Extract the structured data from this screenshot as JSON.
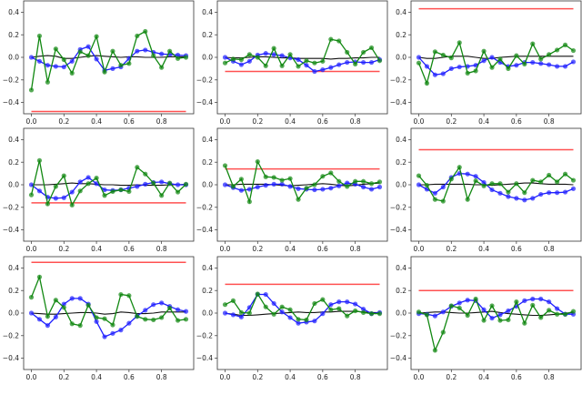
{
  "chart_data": {
    "type": "line",
    "layout": "3x3 grid of subplots",
    "x": [
      0,
      0.05,
      0.1,
      0.15,
      0.2,
      0.25,
      0.3,
      0.35,
      0.4,
      0.45,
      0.5,
      0.55,
      0.6,
      0.65,
      0.7,
      0.75,
      0.8,
      0.85,
      0.9,
      0.95
    ],
    "xlim": [
      -0.0475,
      0.9975
    ],
    "ylim": [
      -0.5,
      0.5
    ],
    "xticks": [
      "0.0",
      "0.2",
      "0.4",
      "0.6",
      "0.8"
    ],
    "xtick_values": [
      0,
      0.2,
      0.4,
      0.6,
      0.8
    ],
    "yticks": [
      "−0.4",
      "−0.2",
      "0.0",
      "0.2",
      "0.4"
    ],
    "ytick_values": [
      -0.4,
      -0.2,
      0,
      0.2,
      0.4
    ],
    "grid": false,
    "colors": {
      "green": "#118811",
      "blue": "#1f1fff",
      "black": "#111111",
      "red": "#ff3333"
    },
    "panels": [
      {
        "red": -0.48,
        "green": [
          -0.29,
          0.19,
          -0.22,
          0.075,
          -0.02,
          -0.14,
          0.05,
          0.015,
          0.185,
          -0.13,
          0.055,
          -0.07,
          -0.055,
          0.19,
          0.23,
          0.015,
          -0.09,
          0.055,
          -0.01,
          0.0
        ],
        "blue": [
          0,
          -0.035,
          -0.07,
          -0.08,
          -0.085,
          -0.035,
          0.07,
          0.095,
          -0.015,
          -0.115,
          -0.1,
          -0.085,
          -0.01,
          0.055,
          0.065,
          0.045,
          0.03,
          0.025,
          0.02,
          0.015
        ],
        "black": [
          0,
          0.01,
          0.015,
          0.01,
          -0.01,
          -0.01,
          0,
          0.01,
          0.015,
          0.01,
          0.005,
          0,
          0.005,
          0.005,
          0,
          0,
          0,
          0.005,
          0.005,
          0.005
        ]
      },
      {
        "red": -0.125,
        "green": [
          -0.05,
          -0.015,
          -0.02,
          0.025,
          0,
          -0.075,
          0.08,
          -0.075,
          0.025,
          -0.08,
          -0.03,
          -0.05,
          -0.035,
          0.16,
          0.145,
          0.045,
          -0.06,
          0.045,
          0.085,
          -0.03
        ],
        "blue": [
          0,
          -0.035,
          -0.065,
          -0.035,
          0.02,
          0.035,
          0.025,
          0.015,
          -0.005,
          -0.02,
          -0.07,
          -0.125,
          -0.11,
          -0.09,
          -0.065,
          -0.045,
          -0.04,
          -0.045,
          -0.045,
          -0.02
        ],
        "black": [
          0,
          -0.005,
          -0.005,
          0,
          0.005,
          0.005,
          0,
          -0.005,
          -0.005,
          -0.01,
          -0.01,
          -0.01,
          -0.01,
          -0.015,
          -0.01,
          -0.01,
          -0.005,
          -0.005,
          0,
          0
        ]
      },
      {
        "red": 0.43,
        "green": [
          -0.05,
          -0.23,
          0.05,
          0.02,
          -0.005,
          0.13,
          -0.14,
          -0.12,
          0.055,
          -0.09,
          -0.015,
          -0.1,
          0.015,
          -0.06,
          0.12,
          -0.015,
          0.025,
          0.065,
          0.11,
          0.06
        ],
        "blue": [
          0,
          -0.08,
          -0.155,
          -0.145,
          -0.1,
          -0.085,
          -0.08,
          -0.07,
          -0.03,
          0,
          -0.045,
          -0.08,
          -0.07,
          -0.045,
          -0.045,
          -0.055,
          -0.065,
          -0.08,
          -0.08,
          -0.04
        ],
        "black": [
          0,
          -0.01,
          -0.01,
          0,
          0.01,
          0.01,
          0.01,
          0,
          -0.01,
          -0.01,
          0,
          0.005,
          0.01,
          0.01,
          0.01,
          0.01,
          0.01,
          0.01,
          0.01,
          0.01
        ]
      },
      {
        "red": -0.16,
        "green": [
          -0.09,
          0.215,
          -0.17,
          -0.015,
          0.08,
          -0.18,
          -0.055,
          0.01,
          0.06,
          -0.095,
          -0.06,
          -0.045,
          -0.06,
          0.155,
          0.095,
          0.015,
          -0.095,
          0.015,
          -0.065,
          0.005
        ],
        "blue": [
          0,
          -0.055,
          -0.11,
          -0.12,
          -0.115,
          -0.065,
          0.025,
          0.065,
          0.01,
          -0.045,
          -0.05,
          -0.045,
          -0.03,
          -0.015,
          0.005,
          0.02,
          0.025,
          0.01,
          0,
          0
        ],
        "black": [
          0,
          0,
          0,
          0.005,
          0.01,
          0.015,
          0.01,
          0.01,
          0.005,
          0,
          0,
          -0.005,
          -0.005,
          0,
          -0.005,
          -0.005,
          -0.005,
          0,
          0,
          0.005
        ]
      },
      {
        "red": 0.14,
        "green": [
          0.17,
          -0.015,
          0.05,
          -0.15,
          0.205,
          0.07,
          0.065,
          0.04,
          0.055,
          -0.13,
          -0.03,
          0,
          0.075,
          0.105,
          0.03,
          -0.015,
          0.03,
          0.03,
          0.01,
          0.025
        ],
        "blue": [
          0,
          -0.025,
          -0.05,
          -0.04,
          -0.02,
          -0.005,
          0.005,
          0.005,
          -0.015,
          -0.035,
          -0.04,
          -0.045,
          -0.04,
          -0.03,
          -0.01,
          0.015,
          0.005,
          -0.02,
          -0.04,
          -0.02
        ],
        "black": [
          0,
          0,
          0.005,
          0.005,
          0.005,
          0.005,
          0,
          -0.005,
          -0.01,
          -0.005,
          0,
          0.005,
          0.01,
          0.005,
          -0.005,
          -0.01,
          -0.005,
          0.005,
          0.01,
          0.015
        ]
      },
      {
        "red": 0.31,
        "green": [
          0.08,
          -0.005,
          -0.13,
          -0.145,
          0.05,
          0.155,
          -0.13,
          0.035,
          -0.01,
          0.01,
          0.01,
          -0.065,
          0.01,
          -0.07,
          0.04,
          0.025,
          0.085,
          0.025,
          0.095,
          0.04
        ],
        "blue": [
          0,
          -0.04,
          -0.075,
          -0.02,
          0.065,
          0.1,
          0.095,
          0.075,
          0.02,
          -0.045,
          -0.075,
          -0.105,
          -0.12,
          -0.135,
          -0.12,
          -0.085,
          -0.07,
          -0.07,
          -0.065,
          -0.035
        ],
        "black": [
          0,
          0,
          0.005,
          0.005,
          0.005,
          0.005,
          0.005,
          0,
          0,
          -0.005,
          0,
          0.005,
          0.01,
          0.015,
          0.015,
          0.01,
          0.005,
          0.005,
          0.005,
          0
        ]
      },
      {
        "red": 0.45,
        "green": [
          0.14,
          0.32,
          -0.03,
          0.115,
          0.05,
          -0.095,
          -0.11,
          0.07,
          -0.04,
          -0.05,
          -0.105,
          0.165,
          0.155,
          -0.03,
          -0.055,
          -0.06,
          -0.04,
          0.045,
          -0.065,
          -0.055
        ],
        "blue": [
          0,
          -0.055,
          -0.11,
          -0.035,
          0.08,
          0.13,
          0.13,
          0.08,
          -0.075,
          -0.21,
          -0.18,
          -0.15,
          -0.09,
          -0.025,
          0.025,
          0.075,
          0.09,
          0.06,
          0.03,
          0.015
        ],
        "black": [
          0,
          -0.005,
          -0.01,
          -0.01,
          -0.005,
          0,
          0.005,
          0.005,
          0,
          -0.01,
          -0.005,
          0.01,
          0.005,
          -0.005,
          -0.005,
          0,
          0.01,
          0.01,
          0.01,
          0.01
        ]
      },
      {
        "red": 0.255,
        "green": [
          0.075,
          0.11,
          0.005,
          0,
          0.17,
          0.055,
          -0.01,
          0.055,
          0.03,
          -0.055,
          -0.06,
          0.085,
          0.12,
          0.03,
          0.04,
          -0.025,
          0.02,
          0.005,
          -0.005,
          -0.005
        ],
        "blue": [
          0,
          -0.015,
          -0.035,
          0.05,
          0.165,
          0.165,
          0.085,
          0.01,
          -0.04,
          -0.09,
          -0.08,
          -0.07,
          -0.005,
          0.075,
          0.1,
          0.1,
          0.08,
          0.035,
          -0.005,
          0.005
        ],
        "black": [
          0,
          -0.01,
          -0.02,
          -0.02,
          -0.015,
          -0.01,
          -0.005,
          0,
          0.005,
          0.01,
          0.005,
          0.005,
          0.01,
          0.01,
          0.015,
          0.015,
          0.015,
          0.01,
          0.005,
          0.005
        ]
      },
      {
        "red": 0.2,
        "green": [
          0.01,
          -0.015,
          -0.33,
          -0.17,
          0.065,
          0.045,
          -0.02,
          0.125,
          -0.065,
          0.065,
          -0.065,
          -0.06,
          0.1,
          -0.09,
          0.07,
          -0.04,
          0.025,
          -0.01,
          -0.01,
          0.015
        ],
        "blue": [
          -0.005,
          -0.01,
          -0.025,
          0.01,
          0.06,
          0.09,
          0.115,
          0.11,
          0.03,
          -0.045,
          -0.015,
          0.02,
          0.06,
          0.11,
          0.125,
          0.125,
          0.1,
          0.04,
          -0.01,
          -0.01
        ],
        "black": [
          0,
          0.005,
          0.01,
          0.01,
          0.005,
          0,
          0,
          0.005,
          0.01,
          0.015,
          0.005,
          -0.005,
          -0.01,
          -0.015,
          -0.02,
          -0.02,
          -0.015,
          -0.01,
          0,
          0.005
        ]
      }
    ]
  }
}
